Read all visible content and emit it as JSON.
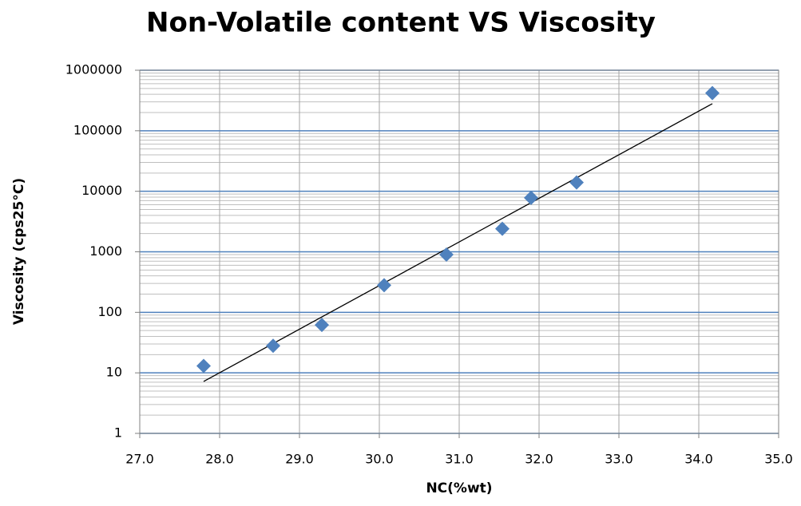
{
  "chart_data": {
    "type": "scatter",
    "title": "Non-Volatile content VS Viscosity",
    "xlabel": "NC(%wt)",
    "ylabel": "Viscosity (cps25°C)",
    "series": [
      {
        "color": "#4f81bd",
        "x": [
          27.8,
          28.67,
          29.28,
          30.06,
          30.84,
          31.54,
          31.9,
          32.47,
          34.17
        ],
        "values": [
          13,
          28,
          62,
          280,
          900,
          2400,
          7800,
          14000,
          420000
        ]
      }
    ],
    "trendline": {
      "color": "#000000",
      "x": [
        27.8,
        34.17
      ],
      "values": [
        7.2,
        280000
      ]
    },
    "xlim": [
      27,
      35
    ],
    "xticks": [
      {
        "value": 27,
        "label": "27.0"
      },
      {
        "value": 28,
        "label": "28.0"
      },
      {
        "value": 29,
        "label": "29.0"
      },
      {
        "value": 30,
        "label": "30.0"
      },
      {
        "value": 31,
        "label": "31.0"
      },
      {
        "value": 32,
        "label": "32.0"
      },
      {
        "value": 33,
        "label": "33.0"
      },
      {
        "value": 34,
        "label": "34.0"
      },
      {
        "value": 35,
        "label": "35.0"
      }
    ],
    "ylim": [
      1,
      1000000
    ],
    "yticks": [
      1,
      10,
      100,
      1000,
      10000,
      100000,
      1000000
    ],
    "ylog": true,
    "grid": true,
    "minor_grid": true
  }
}
